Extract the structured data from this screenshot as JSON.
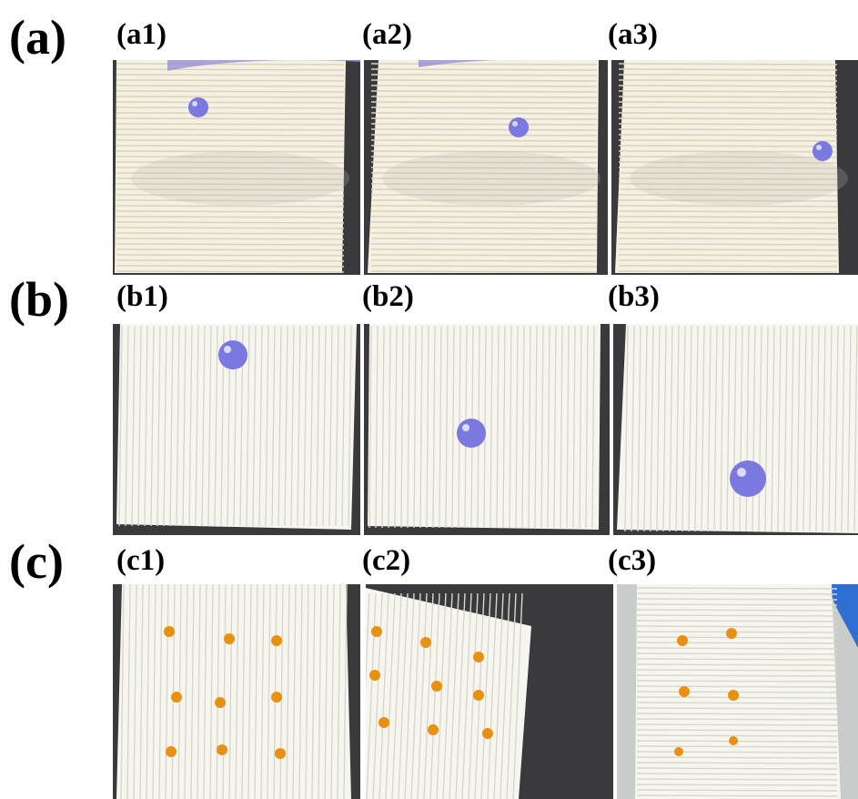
{
  "rows": [
    {
      "label": "(a)",
      "panels": [
        {
          "label": "(a1)",
          "droplet_position": "upper-left"
        },
        {
          "label": "(a2)",
          "droplet_position": "upper-middle"
        },
        {
          "label": "(a3)",
          "droplet_position": "upper-right"
        }
      ]
    },
    {
      "label": "(b)",
      "panels": [
        {
          "label": "(b1)",
          "droplet_position": "top"
        },
        {
          "label": "(b2)",
          "droplet_position": "middle"
        },
        {
          "label": "(b3)",
          "droplet_position": "bottom"
        }
      ]
    },
    {
      "label": "(c)",
      "panels": [
        {
          "label": "(c1)",
          "droplet_count": 9
        },
        {
          "label": "(c2)",
          "droplet_count": 9
        },
        {
          "label": "(c3)",
          "droplet_count": 6
        }
      ]
    }
  ],
  "colors": {
    "substrate": "#f5f1e2",
    "groove": "#d8d2bd",
    "background_dark": "#3a3a3c",
    "water_droplet": "#7b78e0",
    "oil_droplet": "#e8900f",
    "glove": "#2f6fd1"
  }
}
